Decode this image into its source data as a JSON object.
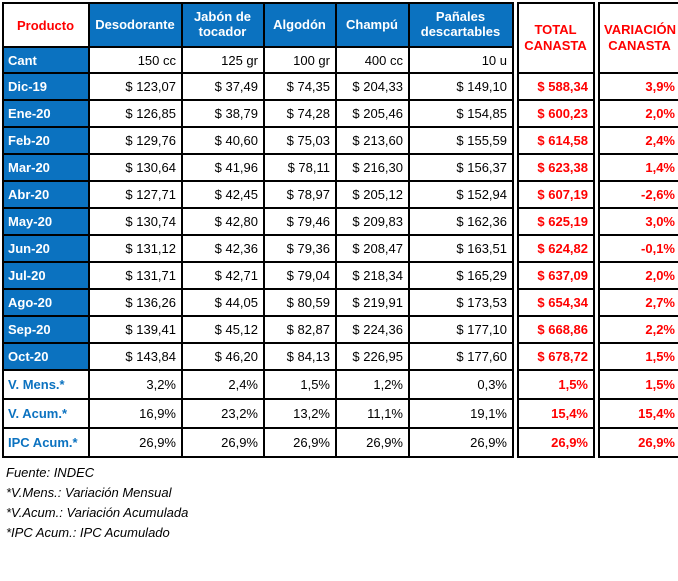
{
  "chart_data": {
    "type": "table",
    "corner_header": "Producto",
    "qty_row_label": "Cant",
    "products": [
      {
        "label": "Desodorante",
        "qty": "150 cc"
      },
      {
        "label": "Jabón de tocador",
        "qty": "125 gr"
      },
      {
        "label": "Algodón",
        "qty": "100 gr"
      },
      {
        "label": "Champú",
        "qty": "400 cc"
      },
      {
        "label": "Pañales descartables",
        "qty": "10 u"
      }
    ],
    "total_header": "TOTAL CANASTA",
    "variation_header": "VARIACIÓN CANASTA",
    "rows": [
      {
        "type": "month",
        "label": "Dic-19",
        "values": [
          "$ 123,07",
          "$ 37,49",
          "$ 74,35",
          "$ 204,33",
          "$ 149,10"
        ],
        "total": "$ 588,34",
        "variation": "3,9%"
      },
      {
        "type": "month",
        "label": "Ene-20",
        "values": [
          "$ 126,85",
          "$ 38,79",
          "$ 74,28",
          "$ 205,46",
          "$ 154,85"
        ],
        "total": "$ 600,23",
        "variation": "2,0%"
      },
      {
        "type": "month",
        "label": "Feb-20",
        "values": [
          "$ 129,76",
          "$ 40,60",
          "$ 75,03",
          "$ 213,60",
          "$ 155,59"
        ],
        "total": "$ 614,58",
        "variation": "2,4%"
      },
      {
        "type": "month",
        "label": "Mar-20",
        "values": [
          "$ 130,64",
          "$ 41,96",
          "$ 78,11",
          "$ 216,30",
          "$ 156,37"
        ],
        "total": "$ 623,38",
        "variation": "1,4%"
      },
      {
        "type": "month",
        "label": "Abr-20",
        "values": [
          "$ 127,71",
          "$ 42,45",
          "$ 78,97",
          "$ 205,12",
          "$ 152,94"
        ],
        "total": "$ 607,19",
        "variation": "-2,6%"
      },
      {
        "type": "month",
        "label": "May-20",
        "values": [
          "$ 130,74",
          "$ 42,80",
          "$ 79,46",
          "$ 209,83",
          "$ 162,36"
        ],
        "total": "$ 625,19",
        "variation": "3,0%"
      },
      {
        "type": "month",
        "label": "Jun-20",
        "values": [
          "$ 131,12",
          "$ 42,36",
          "$ 79,36",
          "$ 208,47",
          "$ 163,51"
        ],
        "total": "$ 624,82",
        "variation": "-0,1%"
      },
      {
        "type": "month",
        "label": "Jul-20",
        "values": [
          "$ 131,71",
          "$ 42,71",
          "$ 79,04",
          "$ 218,34",
          "$ 165,29"
        ],
        "total": "$ 637,09",
        "variation": "2,0%"
      },
      {
        "type": "month",
        "label": "Ago-20",
        "values": [
          "$ 136,26",
          "$ 44,05",
          "$ 80,59",
          "$ 219,91",
          "$ 173,53"
        ],
        "total": "$ 654,34",
        "variation": "2,7%"
      },
      {
        "type": "month",
        "label": "Sep-20",
        "values": [
          "$ 139,41",
          "$ 45,12",
          "$ 82,87",
          "$ 224,36",
          "$ 177,10"
        ],
        "total": "$ 668,86",
        "variation": "2,2%"
      },
      {
        "type": "month",
        "label": "Oct-20",
        "values": [
          "$ 143,84",
          "$ 46,20",
          "$ 84,13",
          "$ 226,95",
          "$ 177,60"
        ],
        "total": "$ 678,72",
        "variation": "1,5%"
      },
      {
        "type": "summary",
        "label": "V. Mens.*",
        "values": [
          "3,2%",
          "2,4%",
          "1,5%",
          "1,2%",
          "0,3%"
        ],
        "total": "1,5%",
        "variation": "1,5%"
      },
      {
        "type": "summary",
        "label": "V. Acum.*",
        "values": [
          "16,9%",
          "23,2%",
          "13,2%",
          "11,1%",
          "19,1%"
        ],
        "total": "15,4%",
        "variation": "15,4%"
      },
      {
        "type": "summary",
        "label": "IPC Acum.*",
        "values": [
          "26,9%",
          "26,9%",
          "26,9%",
          "26,9%",
          "26,9%"
        ],
        "total": "26,9%",
        "variation": "26,9%"
      }
    ],
    "footnotes": [
      "Fuente: INDEC",
      "*V.Mens.: Variación Mensual",
      "*V.Acum.: Variación Acumulada",
      "*IPC Acum.: IPC Acumulado"
    ]
  },
  "colors": {
    "header_fill_blue": "#0b72c0",
    "accent_red": "#ff0000",
    "border_black": "#000000"
  }
}
